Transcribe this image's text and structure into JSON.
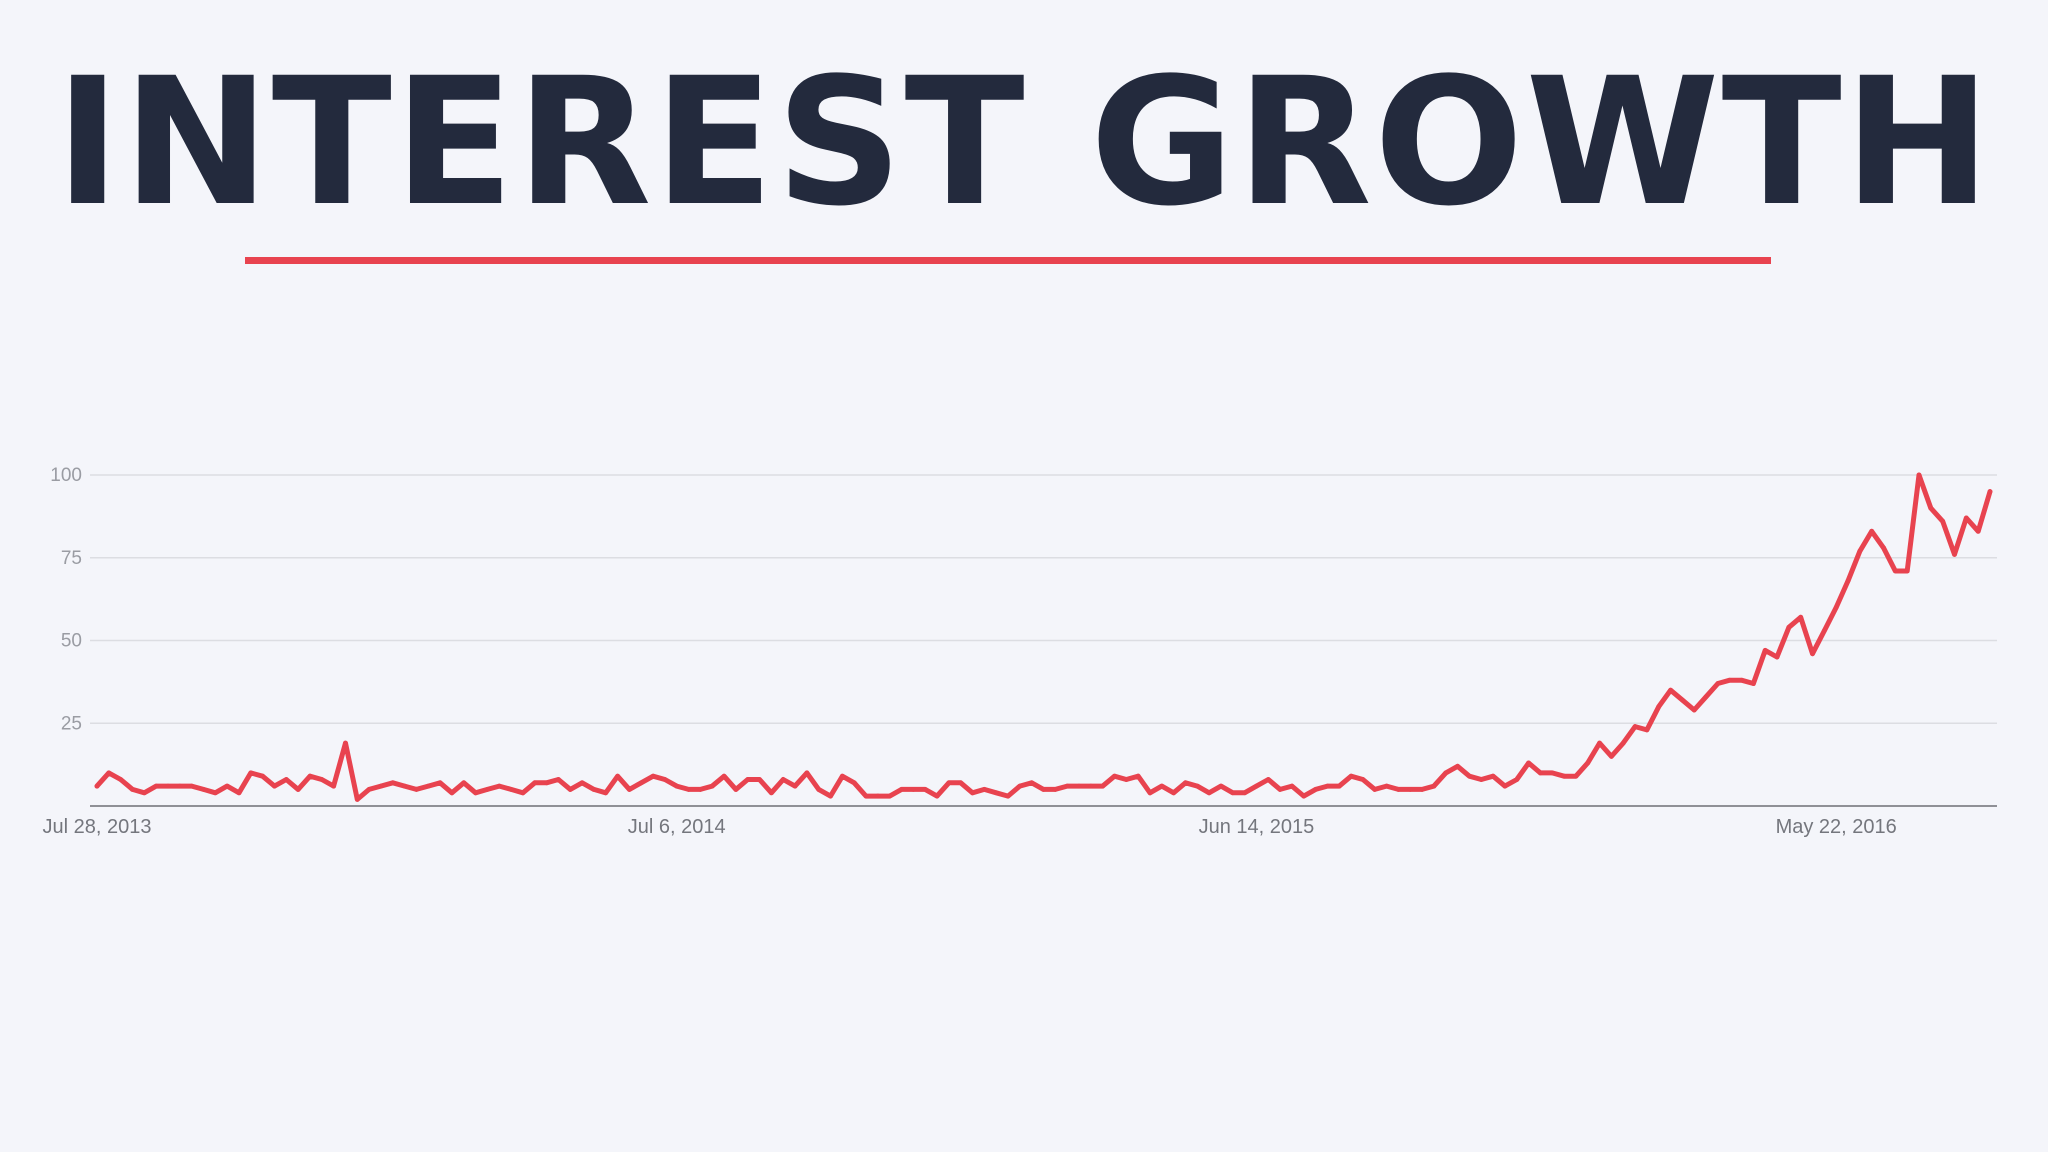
{
  "header": {
    "title": "INTEREST GROWTH",
    "accent_color": "#e8434f",
    "title_color": "#232a3d"
  },
  "chart_data": {
    "type": "line",
    "title": "INTEREST GROWTH",
    "xlabel": "",
    "ylabel": "",
    "ylim": [
      0,
      100
    ],
    "yticks": [
      25,
      50,
      75,
      100
    ],
    "grid": true,
    "x_tick_labels": [
      "Jul 28, 2013",
      "Jul 6, 2014",
      "Jun 14, 2015",
      "May 22, 2016"
    ],
    "x_tick_indices": [
      0,
      49,
      98,
      147
    ],
    "x_start": "Jul 28, 2013",
    "x_step": "1 week",
    "line_color": "#e8434f",
    "series": [
      {
        "values": [
          6,
          10,
          8,
          5,
          4,
          6,
          6,
          6,
          6,
          5,
          4,
          6,
          4,
          10,
          9,
          6,
          8,
          5,
          9,
          8,
          6,
          19,
          2,
          5,
          6,
          7,
          6,
          5,
          6,
          7,
          4,
          7,
          4,
          5,
          6,
          5,
          4,
          7,
          7,
          8,
          5,
          7,
          5,
          4,
          9,
          5,
          7,
          9,
          8,
          6,
          5,
          5,
          6,
          9,
          5,
          8,
          8,
          4,
          8,
          6,
          10,
          5,
          3,
          9,
          7,
          3,
          3,
          3,
          5,
          5,
          5,
          3,
          7,
          7,
          4,
          5,
          4,
          3,
          6,
          7,
          5,
          5,
          6,
          6,
          6,
          6,
          9,
          8,
          9,
          4,
          6,
          4,
          7,
          6,
          4,
          6,
          4,
          4,
          6,
          8,
          5,
          6,
          3,
          5,
          6,
          6,
          9,
          8,
          5,
          6,
          5,
          5,
          5,
          6,
          10,
          12,
          9,
          8,
          9,
          6,
          8,
          13,
          10,
          10,
          9,
          9,
          13,
          19,
          15,
          19,
          24,
          23,
          30,
          35,
          32,
          29,
          33,
          37,
          38,
          38,
          37,
          47,
          45,
          54,
          57,
          46,
          53,
          60,
          68,
          77,
          83,
          78,
          71,
          71,
          100,
          90,
          86,
          76,
          87,
          83,
          95
        ]
      }
    ]
  }
}
